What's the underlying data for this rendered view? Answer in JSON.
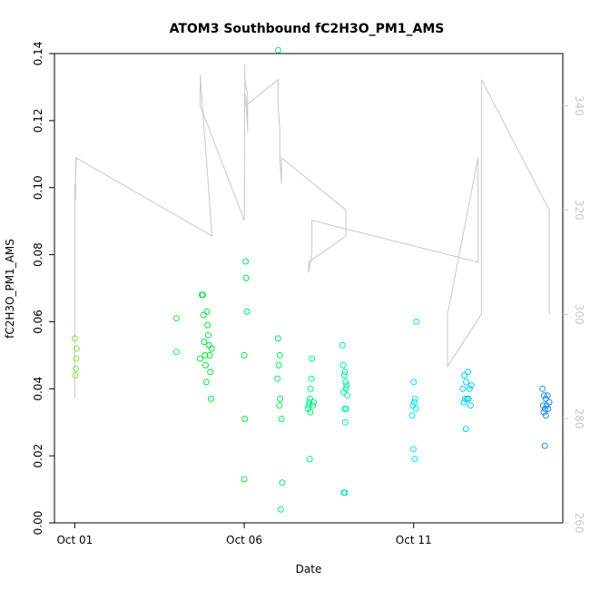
{
  "chart_data": {
    "type": "scatter",
    "title": "ATOM3 Southbound fC2H3O_PM1_AMS",
    "xlabel": "Date",
    "ylabel": "fC2H3O_PM1_AMS",
    "x_unit": "days since Oct 01",
    "xlim": [
      -0.6,
      14.4
    ],
    "ylim": [
      0,
      0.14
    ],
    "y2lim": [
      260,
      350
    ],
    "x_ticks": [
      {
        "value": 0,
        "label": "Oct 01"
      },
      {
        "value": 5,
        "label": "Oct 06"
      },
      {
        "value": 10,
        "label": "Oct 11"
      }
    ],
    "y_ticks": [
      0.0,
      0.02,
      0.04,
      0.06,
      0.08,
      0.1,
      0.12,
      0.14
    ],
    "y_tick_labels": [
      "0.00",
      "0.02",
      "0.04",
      "0.06",
      "0.08",
      "0.10",
      "0.12",
      "0.14"
    ],
    "y2_ticks": [
      260,
      280,
      300,
      320,
      340
    ],
    "y2_tick_labels": [
      "260",
      "280",
      "300",
      "320",
      "340"
    ],
    "grid": false,
    "points": [
      {
        "x": 0.0,
        "y": 0.055
      },
      {
        "x": 0.03,
        "y": 0.046
      },
      {
        "x": 0.05,
        "y": 0.052
      },
      {
        "x": 0.04,
        "y": 0.049
      },
      {
        "x": 0.01,
        "y": 0.044
      },
      {
        "x": 3.0,
        "y": 0.061
      },
      {
        "x": 3.0,
        "y": 0.051
      },
      {
        "x": 3.75,
        "y": 0.068
      },
      {
        "x": 3.78,
        "y": 0.068
      },
      {
        "x": 3.8,
        "y": 0.062
      },
      {
        "x": 3.82,
        "y": 0.054
      },
      {
        "x": 3.84,
        "y": 0.05
      },
      {
        "x": 3.86,
        "y": 0.047
      },
      {
        "x": 3.88,
        "y": 0.042
      },
      {
        "x": 3.9,
        "y": 0.063
      },
      {
        "x": 3.92,
        "y": 0.059
      },
      {
        "x": 3.94,
        "y": 0.056
      },
      {
        "x": 3.96,
        "y": 0.053
      },
      {
        "x": 3.98,
        "y": 0.05
      },
      {
        "x": 4.0,
        "y": 0.045
      },
      {
        "x": 4.02,
        "y": 0.037
      },
      {
        "x": 4.04,
        "y": 0.052
      },
      {
        "x": 3.7,
        "y": 0.049
      },
      {
        "x": 5.0,
        "y": 0.05
      },
      {
        "x": 5.04,
        "y": 0.078
      },
      {
        "x": 5.06,
        "y": 0.073
      },
      {
        "x": 5.08,
        "y": 0.063
      },
      {
        "x": 5.02,
        "y": 0.031
      },
      {
        "x": 5.0,
        "y": 0.013
      },
      {
        "x": 6.0,
        "y": 0.141
      },
      {
        "x": 6.0,
        "y": 0.055
      },
      {
        "x": 6.05,
        "y": 0.05
      },
      {
        "x": 6.02,
        "y": 0.047
      },
      {
        "x": 5.98,
        "y": 0.043
      },
      {
        "x": 6.06,
        "y": 0.037
      },
      {
        "x": 6.04,
        "y": 0.035
      },
      {
        "x": 6.1,
        "y": 0.031
      },
      {
        "x": 6.12,
        "y": 0.012
      },
      {
        "x": 6.08,
        "y": 0.004
      },
      {
        "x": 7.0,
        "y": 0.049
      },
      {
        "x": 6.98,
        "y": 0.043
      },
      {
        "x": 6.96,
        "y": 0.04
      },
      {
        "x": 6.94,
        "y": 0.037
      },
      {
        "x": 6.92,
        "y": 0.036
      },
      {
        "x": 6.9,
        "y": 0.035
      },
      {
        "x": 6.88,
        "y": 0.034
      },
      {
        "x": 6.95,
        "y": 0.033
      },
      {
        "x": 7.02,
        "y": 0.035
      },
      {
        "x": 7.05,
        "y": 0.036
      },
      {
        "x": 6.93,
        "y": 0.019
      },
      {
        "x": 7.9,
        "y": 0.053
      },
      {
        "x": 7.92,
        "y": 0.047
      },
      {
        "x": 7.95,
        "y": 0.044
      },
      {
        "x": 7.97,
        "y": 0.045
      },
      {
        "x": 7.99,
        "y": 0.042
      },
      {
        "x": 8.0,
        "y": 0.04
      },
      {
        "x": 8.02,
        "y": 0.041
      },
      {
        "x": 8.04,
        "y": 0.038
      },
      {
        "x": 7.93,
        "y": 0.039
      },
      {
        "x": 7.96,
        "y": 0.034
      },
      {
        "x": 8.01,
        "y": 0.034
      },
      {
        "x": 7.98,
        "y": 0.03
      },
      {
        "x": 7.94,
        "y": 0.009
      },
      {
        "x": 7.97,
        "y": 0.009
      },
      {
        "x": 10.0,
        "y": 0.042
      },
      {
        "x": 10.02,
        "y": 0.036
      },
      {
        "x": 10.04,
        "y": 0.037
      },
      {
        "x": 9.98,
        "y": 0.035
      },
      {
        "x": 10.06,
        "y": 0.034
      },
      {
        "x": 9.96,
        "y": 0.032
      },
      {
        "x": 10.08,
        "y": 0.06
      },
      {
        "x": 9.99,
        "y": 0.022
      },
      {
        "x": 10.03,
        "y": 0.019
      },
      {
        "x": 11.5,
        "y": 0.044
      },
      {
        "x": 11.6,
        "y": 0.045
      },
      {
        "x": 11.55,
        "y": 0.042
      },
      {
        "x": 11.65,
        "y": 0.04
      },
      {
        "x": 11.7,
        "y": 0.041
      },
      {
        "x": 11.45,
        "y": 0.04
      },
      {
        "x": 11.52,
        "y": 0.037
      },
      {
        "x": 11.58,
        "y": 0.037
      },
      {
        "x": 11.62,
        "y": 0.037
      },
      {
        "x": 11.48,
        "y": 0.036
      },
      {
        "x": 11.68,
        "y": 0.035
      },
      {
        "x": 11.54,
        "y": 0.028
      },
      {
        "x": 13.8,
        "y": 0.04
      },
      {
        "x": 13.85,
        "y": 0.038
      },
      {
        "x": 13.9,
        "y": 0.037
      },
      {
        "x": 13.95,
        "y": 0.038
      },
      {
        "x": 14.0,
        "y": 0.036
      },
      {
        "x": 13.82,
        "y": 0.035
      },
      {
        "x": 13.88,
        "y": 0.034
      },
      {
        "x": 13.92,
        "y": 0.035
      },
      {
        "x": 13.97,
        "y": 0.034
      },
      {
        "x": 13.84,
        "y": 0.033
      },
      {
        "x": 13.9,
        "y": 0.032
      },
      {
        "x": 13.87,
        "y": 0.023
      }
    ],
    "line_series": {
      "color": "#c8c8c8",
      "axis": "right",
      "x": [
        0.0,
        0.0,
        0.02,
        0.03,
        0.04,
        0.04,
        4.05,
        3.7,
        3.7,
        5.0,
        5.02,
        5.02,
        5.1,
        5.1,
        5.05,
        5.05,
        6.0,
        6.0,
        6.05,
        6.05,
        6.1,
        6.1,
        8.0,
        8.0,
        6.9,
        6.9,
        7.0,
        7.0,
        11.9,
        11.9,
        11.0,
        11.0,
        12.0,
        12.0,
        14.0,
        14.0
      ],
      "y": [
        284,
        325,
        322,
        330,
        328,
        330,
        315,
        346,
        340,
        318,
        348,
        345,
        342,
        335,
        342,
        340,
        345,
        340,
        335,
        330,
        325,
        330,
        320,
        315,
        310,
        308,
        312,
        318,
        310,
        330,
        300,
        290,
        300,
        345,
        320,
        300
      ]
    }
  }
}
